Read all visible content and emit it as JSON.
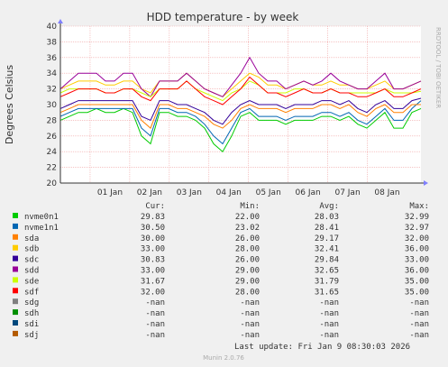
{
  "chart_data": {
    "type": "line",
    "title": "HDD temperature - by week",
    "ylabel": "Degrees Celsius",
    "xlabel": "",
    "ylim": [
      20,
      40
    ],
    "yticks": [
      20,
      22,
      24,
      26,
      28,
      30,
      32,
      34,
      36,
      38,
      40
    ],
    "xrange": [
      "2025-12-31T06:00",
      "2026-01-09T08:30"
    ],
    "xticks": [
      {
        "label": "01 Jan",
        "date": "2026-01-01"
      },
      {
        "label": "02 Jan",
        "date": "2026-01-02"
      },
      {
        "label": "03 Jan",
        "date": "2026-01-03"
      },
      {
        "label": "04 Jan",
        "date": "2026-01-04"
      },
      {
        "label": "05 Jan",
        "date": "2026-01-05"
      },
      {
        "label": "06 Jan",
        "date": "2026-01-06"
      },
      {
        "label": "07 Jan",
        "date": "2026-01-07"
      },
      {
        "label": "08 Jan",
        "date": "2026-01-08"
      }
    ],
    "grid": true,
    "legend_position": "bottom",
    "legend_headers": {
      "cur": "Cur:",
      "min": "Min:",
      "avg": "Avg:",
      "max": "Max:"
    },
    "series": [
      {
        "name": "nvme0n1",
        "color": "#00cc00",
        "cur": "29.83",
        "min": "22.00",
        "avg": "28.03",
        "max": "32.99",
        "values": [
          28,
          28.5,
          29,
          29,
          29.5,
          29,
          29,
          29.5,
          29,
          26,
          25,
          29,
          29,
          28.5,
          28.5,
          28,
          27,
          25,
          24,
          26,
          28.5,
          29,
          28,
          28,
          28,
          27.5,
          28,
          28,
          28,
          28.5,
          28.5,
          28,
          28.5,
          27.5,
          27,
          28,
          29,
          27,
          27,
          29,
          29.5
        ]
      },
      {
        "name": "nvme1n1",
        "color": "#0066b3",
        "cur": "30.50",
        "min": "23.02",
        "avg": "28.41",
        "max": "32.97",
        "values": [
          28.5,
          29,
          29.5,
          29.5,
          29.5,
          29.5,
          29.5,
          29.5,
          29.5,
          27,
          26,
          29.5,
          29.5,
          29,
          29,
          28.5,
          27.5,
          26,
          25,
          27,
          29,
          29.5,
          28.5,
          28.5,
          28.5,
          28,
          28.5,
          28.5,
          28.5,
          29,
          29,
          28.5,
          29,
          28,
          27.5,
          28.5,
          29.5,
          28,
          28,
          29.5,
          30.5
        ]
      },
      {
        "name": "sda",
        "color": "#ff8000",
        "cur": "30.00",
        "min": "26.00",
        "avg": "29.17",
        "max": "32.00",
        "values": [
          29,
          29.5,
          30,
          30,
          30,
          30,
          30,
          30,
          30,
          28,
          27,
          30,
          30,
          29.5,
          29.5,
          29,
          28.5,
          27.5,
          27,
          28,
          29.5,
          30,
          29.5,
          29.5,
          29.5,
          29,
          29.5,
          29.5,
          29.5,
          30,
          30,
          29.5,
          30,
          29,
          28.5,
          29.5,
          30,
          29,
          29,
          30,
          30
        ]
      },
      {
        "name": "sdb",
        "color": "#ffcc00",
        "cur": "33.00",
        "min": "28.00",
        "avg": "32.41",
        "max": "36.00",
        "values": [
          32,
          32.5,
          33,
          33,
          33,
          32.5,
          32.5,
          33,
          33,
          32,
          31.5,
          33,
          33,
          33,
          34,
          33,
          32,
          31.5,
          31,
          32,
          33,
          34,
          33.5,
          32.5,
          32.5,
          32,
          32.5,
          33,
          32.5,
          32.5,
          33,
          32.5,
          32.5,
          32,
          32,
          32.5,
          33,
          32,
          32,
          32.5,
          33
        ]
      },
      {
        "name": "sdc",
        "color": "#330099",
        "cur": "30.83",
        "min": "26.00",
        "avg": "29.84",
        "max": "33.00",
        "values": [
          29.5,
          30,
          30.5,
          30.5,
          30.5,
          30.5,
          30.5,
          30.5,
          30.5,
          28.5,
          28,
          30.5,
          30.5,
          30,
          30,
          29.5,
          29,
          28,
          27.5,
          29,
          30,
          30.5,
          30,
          30,
          30,
          29.5,
          30,
          30,
          30,
          30.5,
          30.5,
          30,
          30.5,
          29.5,
          29,
          30,
          30.5,
          29.5,
          29.5,
          30.5,
          30.8
        ]
      },
      {
        "name": "sdd",
        "color": "#990099",
        "cur": "33.00",
        "min": "29.00",
        "avg": "32.65",
        "max": "36.00",
        "values": [
          32,
          33,
          34,
          34,
          34,
          33,
          33,
          34,
          34,
          32,
          31,
          33,
          33,
          33,
          34,
          33,
          32,
          31.5,
          31,
          32.5,
          34,
          36,
          34,
          33,
          33,
          32,
          32.5,
          33,
          32.5,
          33,
          34,
          33,
          32.5,
          32,
          32,
          33,
          34,
          32,
          32,
          32.5,
          33
        ]
      },
      {
        "name": "sde",
        "color": "#ccff00",
        "cur": "31.67",
        "min": "29.00",
        "avg": "31.79",
        "max": "35.00",
        "values": [
          31.5,
          32,
          32,
          32,
          32,
          31.5,
          31.5,
          32,
          32,
          31.5,
          31,
          32,
          32,
          32,
          33,
          32,
          31.5,
          31,
          30.5,
          31.5,
          32,
          33,
          32.5,
          31.5,
          31.5,
          31.5,
          32,
          32,
          31.5,
          31.5,
          32,
          31.5,
          31.5,
          31.5,
          31.5,
          31.5,
          32,
          31.5,
          31.5,
          31.5,
          31.7
        ]
      },
      {
        "name": "sdf",
        "color": "#ff0000",
        "cur": "32.00",
        "min": "28.00",
        "avg": "31.65",
        "max": "35.00",
        "values": [
          31,
          31.5,
          32,
          32,
          32,
          31.5,
          31.5,
          32,
          32,
          31,
          30.5,
          32,
          32,
          32,
          33,
          32,
          31,
          30.5,
          30,
          31,
          32,
          33.5,
          32.5,
          31.5,
          31.5,
          31,
          31.5,
          32,
          31.5,
          31.5,
          32,
          31.5,
          31.5,
          31,
          31,
          31.5,
          32,
          31,
          31,
          31.5,
          32
        ]
      },
      {
        "name": "sdg",
        "color": "#808080",
        "cur": "-nan",
        "min": "-nan",
        "avg": "-nan",
        "max": "-nan",
        "values": []
      },
      {
        "name": "sdh",
        "color": "#008f00",
        "cur": "-nan",
        "min": "-nan",
        "avg": "-nan",
        "max": "-nan",
        "values": []
      },
      {
        "name": "sdi",
        "color": "#00487d",
        "cur": "-nan",
        "min": "-nan",
        "avg": "-nan",
        "max": "-nan",
        "values": []
      },
      {
        "name": "sdj",
        "color": "#b35a00",
        "cur": "-nan",
        "min": "-nan",
        "avg": "-nan",
        "max": "-nan",
        "values": []
      }
    ]
  },
  "side_label": "RRDTOOL / TOBI OETIKER",
  "last_update": "Last update: Fri Jan  9 08:30:03 2026",
  "footer": "Munin 2.0.76"
}
